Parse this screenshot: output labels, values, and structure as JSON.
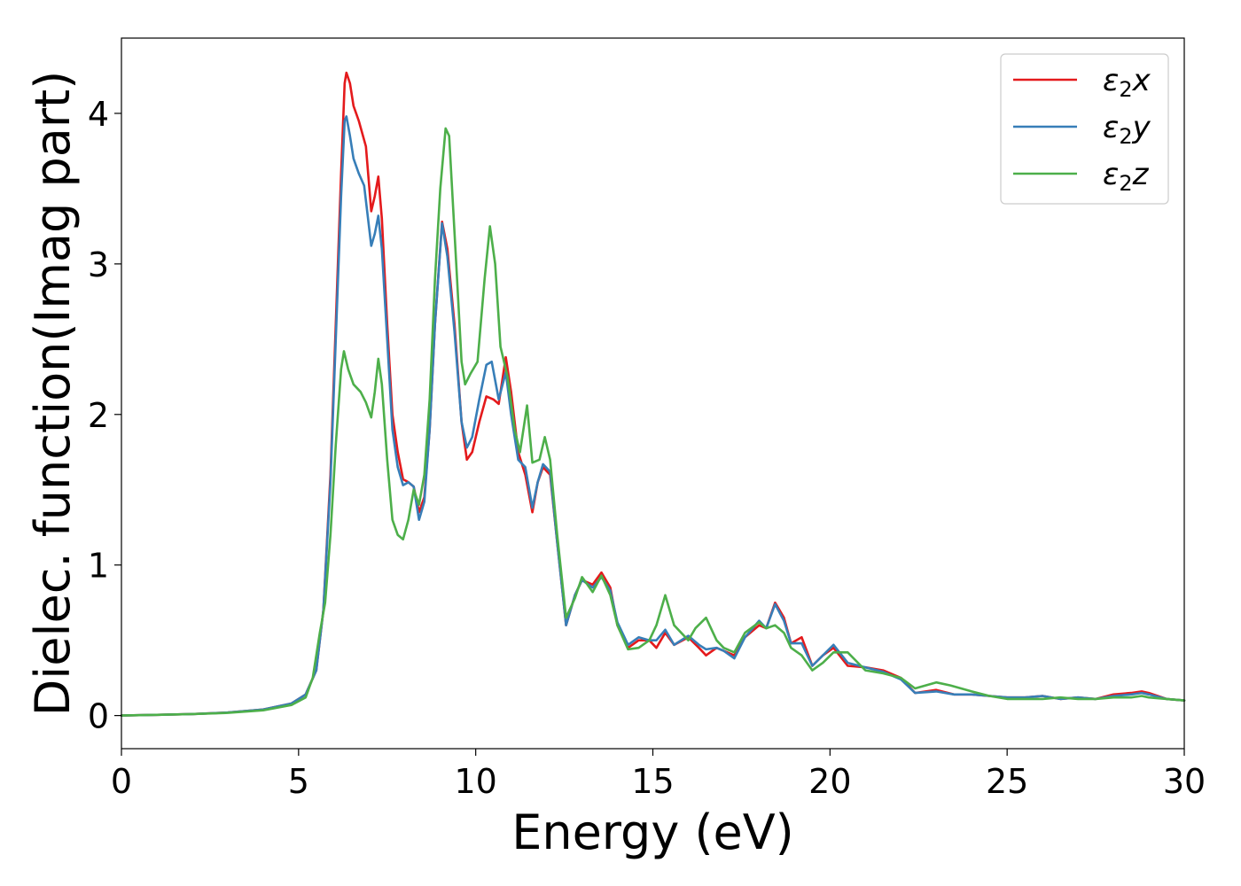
{
  "chart_data": {
    "type": "line",
    "title": "",
    "xlabel": "Energy (eV)",
    "ylabel": "Dielec. function(Imag part)",
    "xlim": [
      0,
      30
    ],
    "ylim": [
      -0.22,
      4.5
    ],
    "x_ticks": [
      0,
      5,
      10,
      15,
      20,
      25,
      30
    ],
    "y_ticks": [
      0,
      1,
      2,
      3,
      4
    ],
    "grid": false,
    "legend_position": "top-right",
    "series": [
      {
        "name": "ε2x",
        "legend": {
          "base": "ε",
          "sub": "2",
          "suffix": "x"
        },
        "color": "#e41a1c",
        "points": [
          [
            0,
            0.0
          ],
          [
            1,
            0.005
          ],
          [
            2,
            0.01
          ],
          [
            3,
            0.02
          ],
          [
            4,
            0.04
          ],
          [
            4.8,
            0.08
          ],
          [
            5.2,
            0.14
          ],
          [
            5.5,
            0.3
          ],
          [
            5.7,
            0.7
          ],
          [
            5.9,
            1.6
          ],
          [
            6.05,
            2.6
          ],
          [
            6.2,
            3.6
          ],
          [
            6.3,
            4.2
          ],
          [
            6.35,
            4.27
          ],
          [
            6.45,
            4.2
          ],
          [
            6.55,
            4.05
          ],
          [
            6.7,
            3.95
          ],
          [
            6.9,
            3.78
          ],
          [
            7.05,
            3.35
          ],
          [
            7.15,
            3.45
          ],
          [
            7.25,
            3.58
          ],
          [
            7.35,
            3.3
          ],
          [
            7.5,
            2.6
          ],
          [
            7.65,
            2.0
          ],
          [
            7.8,
            1.75
          ],
          [
            7.95,
            1.57
          ],
          [
            8.1,
            1.55
          ],
          [
            8.25,
            1.52
          ],
          [
            8.4,
            1.35
          ],
          [
            8.55,
            1.45
          ],
          [
            8.7,
            1.9
          ],
          [
            8.85,
            2.6
          ],
          [
            9.05,
            3.28
          ],
          [
            9.2,
            3.1
          ],
          [
            9.4,
            2.6
          ],
          [
            9.6,
            1.95
          ],
          [
            9.75,
            1.7
          ],
          [
            9.9,
            1.75
          ],
          [
            10.1,
            1.95
          ],
          [
            10.3,
            2.12
          ],
          [
            10.5,
            2.1
          ],
          [
            10.65,
            2.07
          ],
          [
            10.85,
            2.38
          ],
          [
            11.0,
            2.15
          ],
          [
            11.2,
            1.75
          ],
          [
            11.4,
            1.6
          ],
          [
            11.6,
            1.35
          ],
          [
            11.75,
            1.55
          ],
          [
            11.9,
            1.65
          ],
          [
            12.1,
            1.6
          ],
          [
            12.3,
            1.15
          ],
          [
            12.55,
            0.6
          ],
          [
            12.8,
            0.8
          ],
          [
            13.0,
            0.9
          ],
          [
            13.3,
            0.87
          ],
          [
            13.55,
            0.95
          ],
          [
            13.8,
            0.85
          ],
          [
            14.0,
            0.6
          ],
          [
            14.3,
            0.45
          ],
          [
            14.6,
            0.5
          ],
          [
            14.9,
            0.5
          ],
          [
            15.1,
            0.45
          ],
          [
            15.35,
            0.55
          ],
          [
            15.6,
            0.47
          ],
          [
            16.0,
            0.52
          ],
          [
            16.3,
            0.45
          ],
          [
            16.5,
            0.4
          ],
          [
            16.8,
            0.45
          ],
          [
            17.0,
            0.43
          ],
          [
            17.3,
            0.4
          ],
          [
            17.6,
            0.52
          ],
          [
            18.0,
            0.6
          ],
          [
            18.2,
            0.58
          ],
          [
            18.45,
            0.75
          ],
          [
            18.7,
            0.65
          ],
          [
            18.9,
            0.48
          ],
          [
            19.2,
            0.52
          ],
          [
            19.5,
            0.33
          ],
          [
            19.8,
            0.4
          ],
          [
            20.1,
            0.45
          ],
          [
            20.5,
            0.33
          ],
          [
            21.0,
            0.32
          ],
          [
            21.5,
            0.3
          ],
          [
            22.0,
            0.25
          ],
          [
            22.4,
            0.15
          ],
          [
            23.0,
            0.17
          ],
          [
            23.5,
            0.14
          ],
          [
            24.0,
            0.14
          ],
          [
            24.5,
            0.13
          ],
          [
            25.0,
            0.12
          ],
          [
            25.5,
            0.12
          ],
          [
            26.0,
            0.13
          ],
          [
            26.5,
            0.11
          ],
          [
            27.0,
            0.12
          ],
          [
            27.5,
            0.11
          ],
          [
            28.0,
            0.14
          ],
          [
            28.5,
            0.15
          ],
          [
            28.8,
            0.16
          ],
          [
            29.0,
            0.15
          ],
          [
            29.5,
            0.11
          ],
          [
            30,
            0.1
          ]
        ]
      },
      {
        "name": "ε2y",
        "legend": {
          "base": "ε",
          "sub": "2",
          "suffix": "y"
        },
        "color": "#377eb8",
        "points": [
          [
            0,
            0.0
          ],
          [
            1,
            0.005
          ],
          [
            2,
            0.01
          ],
          [
            3,
            0.02
          ],
          [
            4,
            0.04
          ],
          [
            4.8,
            0.08
          ],
          [
            5.2,
            0.14
          ],
          [
            5.5,
            0.3
          ],
          [
            5.7,
            0.7
          ],
          [
            5.9,
            1.55
          ],
          [
            6.05,
            2.5
          ],
          [
            6.2,
            3.45
          ],
          [
            6.3,
            3.95
          ],
          [
            6.35,
            3.98
          ],
          [
            6.45,
            3.85
          ],
          [
            6.55,
            3.7
          ],
          [
            6.7,
            3.6
          ],
          [
            6.85,
            3.52
          ],
          [
            7.05,
            3.12
          ],
          [
            7.15,
            3.2
          ],
          [
            7.25,
            3.32
          ],
          [
            7.35,
            3.1
          ],
          [
            7.5,
            2.5
          ],
          [
            7.65,
            1.9
          ],
          [
            7.8,
            1.65
          ],
          [
            7.95,
            1.53
          ],
          [
            8.1,
            1.55
          ],
          [
            8.25,
            1.52
          ],
          [
            8.4,
            1.3
          ],
          [
            8.55,
            1.42
          ],
          [
            8.7,
            1.9
          ],
          [
            8.85,
            2.6
          ],
          [
            9.05,
            3.27
          ],
          [
            9.2,
            3.05
          ],
          [
            9.4,
            2.55
          ],
          [
            9.6,
            1.95
          ],
          [
            9.75,
            1.78
          ],
          [
            9.9,
            1.85
          ],
          [
            10.1,
            2.1
          ],
          [
            10.3,
            2.33
          ],
          [
            10.45,
            2.35
          ],
          [
            10.65,
            2.1
          ],
          [
            10.85,
            2.28
          ],
          [
            11.0,
            2.0
          ],
          [
            11.2,
            1.7
          ],
          [
            11.4,
            1.65
          ],
          [
            11.6,
            1.38
          ],
          [
            11.75,
            1.55
          ],
          [
            11.9,
            1.67
          ],
          [
            12.1,
            1.62
          ],
          [
            12.3,
            1.15
          ],
          [
            12.55,
            0.6
          ],
          [
            12.8,
            0.8
          ],
          [
            13.0,
            0.9
          ],
          [
            13.3,
            0.85
          ],
          [
            13.55,
            0.92
          ],
          [
            13.8,
            0.83
          ],
          [
            14.0,
            0.62
          ],
          [
            14.3,
            0.47
          ],
          [
            14.6,
            0.52
          ],
          [
            14.9,
            0.5
          ],
          [
            15.1,
            0.5
          ],
          [
            15.35,
            0.57
          ],
          [
            15.6,
            0.47
          ],
          [
            16.0,
            0.53
          ],
          [
            16.3,
            0.47
          ],
          [
            16.5,
            0.44
          ],
          [
            16.8,
            0.45
          ],
          [
            17.0,
            0.43
          ],
          [
            17.3,
            0.38
          ],
          [
            17.6,
            0.52
          ],
          [
            18.0,
            0.63
          ],
          [
            18.2,
            0.58
          ],
          [
            18.45,
            0.74
          ],
          [
            18.7,
            0.63
          ],
          [
            18.9,
            0.48
          ],
          [
            19.2,
            0.48
          ],
          [
            19.5,
            0.33
          ],
          [
            19.8,
            0.4
          ],
          [
            20.1,
            0.47
          ],
          [
            20.5,
            0.35
          ],
          [
            21.0,
            0.32
          ],
          [
            21.5,
            0.29
          ],
          [
            22.0,
            0.24
          ],
          [
            22.4,
            0.15
          ],
          [
            23.0,
            0.16
          ],
          [
            23.5,
            0.14
          ],
          [
            24.0,
            0.14
          ],
          [
            24.5,
            0.13
          ],
          [
            25.0,
            0.12
          ],
          [
            25.5,
            0.12
          ],
          [
            26.0,
            0.13
          ],
          [
            26.5,
            0.11
          ],
          [
            27.0,
            0.12
          ],
          [
            27.5,
            0.11
          ],
          [
            28.0,
            0.13
          ],
          [
            28.5,
            0.14
          ],
          [
            28.8,
            0.15
          ],
          [
            29.0,
            0.14
          ],
          [
            29.5,
            0.11
          ],
          [
            30,
            0.1
          ]
        ]
      },
      {
        "name": "ε2z",
        "legend": {
          "base": "ε",
          "sub": "2",
          "suffix": "z"
        },
        "color": "#4daf4a",
        "points": [
          [
            0,
            0.0
          ],
          [
            1,
            0.005
          ],
          [
            2,
            0.01
          ],
          [
            3,
            0.018
          ],
          [
            4,
            0.035
          ],
          [
            4.8,
            0.07
          ],
          [
            5.2,
            0.12
          ],
          [
            5.4,
            0.25
          ],
          [
            5.6,
            0.55
          ],
          [
            5.75,
            0.75
          ],
          [
            5.9,
            1.2
          ],
          [
            6.05,
            1.8
          ],
          [
            6.2,
            2.3
          ],
          [
            6.28,
            2.42
          ],
          [
            6.4,
            2.3
          ],
          [
            6.55,
            2.2
          ],
          [
            6.75,
            2.15
          ],
          [
            6.9,
            2.08
          ],
          [
            7.05,
            1.98
          ],
          [
            7.15,
            2.15
          ],
          [
            7.25,
            2.37
          ],
          [
            7.35,
            2.2
          ],
          [
            7.5,
            1.7
          ],
          [
            7.65,
            1.3
          ],
          [
            7.8,
            1.2
          ],
          [
            7.95,
            1.17
          ],
          [
            8.1,
            1.3
          ],
          [
            8.25,
            1.5
          ],
          [
            8.4,
            1.4
          ],
          [
            8.55,
            1.6
          ],
          [
            8.7,
            2.1
          ],
          [
            8.85,
            2.9
          ],
          [
            9.0,
            3.5
          ],
          [
            9.15,
            3.9
          ],
          [
            9.25,
            3.85
          ],
          [
            9.45,
            3.0
          ],
          [
            9.6,
            2.35
          ],
          [
            9.7,
            2.2
          ],
          [
            9.85,
            2.27
          ],
          [
            10.05,
            2.35
          ],
          [
            10.25,
            2.9
          ],
          [
            10.4,
            3.25
          ],
          [
            10.55,
            3.0
          ],
          [
            10.7,
            2.45
          ],
          [
            10.9,
            2.25
          ],
          [
            11.1,
            1.9
          ],
          [
            11.25,
            1.75
          ],
          [
            11.45,
            2.06
          ],
          [
            11.6,
            1.68
          ],
          [
            11.8,
            1.7
          ],
          [
            11.95,
            1.85
          ],
          [
            12.1,
            1.7
          ],
          [
            12.3,
            1.2
          ],
          [
            12.55,
            0.65
          ],
          [
            12.8,
            0.78
          ],
          [
            13.0,
            0.92
          ],
          [
            13.3,
            0.82
          ],
          [
            13.55,
            0.93
          ],
          [
            13.8,
            0.8
          ],
          [
            14.0,
            0.6
          ],
          [
            14.3,
            0.44
          ],
          [
            14.6,
            0.45
          ],
          [
            14.9,
            0.5
          ],
          [
            15.1,
            0.6
          ],
          [
            15.35,
            0.8
          ],
          [
            15.6,
            0.6
          ],
          [
            16.0,
            0.5
          ],
          [
            16.2,
            0.58
          ],
          [
            16.5,
            0.65
          ],
          [
            16.8,
            0.5
          ],
          [
            17.0,
            0.45
          ],
          [
            17.3,
            0.42
          ],
          [
            17.6,
            0.55
          ],
          [
            18.0,
            0.62
          ],
          [
            18.2,
            0.58
          ],
          [
            18.45,
            0.6
          ],
          [
            18.7,
            0.55
          ],
          [
            18.9,
            0.45
          ],
          [
            19.2,
            0.4
          ],
          [
            19.5,
            0.3
          ],
          [
            19.8,
            0.35
          ],
          [
            20.1,
            0.42
          ],
          [
            20.5,
            0.42
          ],
          [
            21.0,
            0.3
          ],
          [
            21.5,
            0.28
          ],
          [
            22.0,
            0.25
          ],
          [
            22.4,
            0.18
          ],
          [
            23.0,
            0.22
          ],
          [
            23.4,
            0.2
          ],
          [
            24.0,
            0.16
          ],
          [
            24.5,
            0.13
          ],
          [
            25.0,
            0.11
          ],
          [
            25.5,
            0.11
          ],
          [
            26.0,
            0.11
          ],
          [
            26.5,
            0.12
          ],
          [
            27.0,
            0.11
          ],
          [
            27.5,
            0.11
          ],
          [
            28.0,
            0.12
          ],
          [
            28.5,
            0.12
          ],
          [
            28.8,
            0.13
          ],
          [
            29.0,
            0.12
          ],
          [
            29.5,
            0.11
          ],
          [
            30,
            0.1
          ]
        ]
      }
    ]
  }
}
